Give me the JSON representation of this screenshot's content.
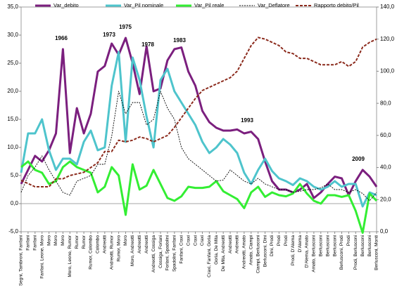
{
  "chart_data": {
    "type": "line",
    "categories": [
      "Segni, Tambroni, Fanfani",
      "Fanfani",
      "Fanfani",
      "Fanfani, Leone, Moro",
      "Moro",
      "Moro",
      "Moro",
      "Moro, Leone, Rumor",
      "Rumor",
      "Rumor",
      "Rumor, Colombo",
      "Colombo",
      "Andreotti",
      "Andreotti, Rumor",
      "Rumor, Moro",
      "Moro",
      "Moro, Andreotti",
      "Andreotti",
      "Andreotti",
      "Andreotti, Cossiga",
      "Cossiga, Forlani",
      "Forlani, Spadolini",
      "Spadolini, Fanfani",
      "Fanfani, Craxi",
      "Craxi",
      "Craxi",
      "Craxi",
      "Craxi, Fanfani, Goria",
      "Goria, De Mita",
      "De Mita, Andreotti",
      "Andreotti",
      "Andreotti",
      "Andreotti, Amato",
      "Amato, Ciampi",
      "Ciampi, Berlusconi",
      "Berlusconi, Dini",
      "Dini, Prodi",
      "Prodi",
      "Prodi",
      "Prodi, D'Alema",
      "D'Alema",
      "D'Alema, Amato",
      "Amato, Berlusconi",
      "Berlusconi",
      "Berlusconi",
      "Berlusconi",
      "Berlusconi, Prodi",
      "Prodi",
      "Prodi, Berlusconi",
      "Berlusconi",
      "Berlusconi",
      "Berlusconi, Monti"
    ],
    "series": [
      {
        "name": "Var_debito",
        "color": "#7b1f7e",
        "style": "solid",
        "values": [
          3.5,
          6,
          8.5,
          7.5,
          9.5,
          12.5,
          27.5,
          9,
          17,
          12.5,
          16,
          23.5,
          24.5,
          28.5,
          26.5,
          29.5,
          25,
          19.5,
          28,
          20,
          20.5,
          25.5,
          27.5,
          27.8,
          23.5,
          21,
          16.5,
          14.5,
          13.5,
          13,
          13,
          13.2,
          12.5,
          12.8,
          11.5,
          7.5,
          4,
          2.5,
          2.5,
          2,
          2.5,
          3.5,
          1,
          2,
          3.5,
          4.8,
          4.5,
          1.5,
          4,
          6,
          4.8,
          3
        ]
      },
      {
        "name": "Var_Pil nominale",
        "color": "#4ec4cc",
        "style": "solid",
        "values": [
          5.5,
          12.5,
          12.5,
          15,
          9.5,
          6,
          8,
          8,
          7,
          11,
          13,
          9.5,
          10,
          21,
          27,
          11,
          26,
          22,
          15.5,
          10,
          22,
          24,
          20,
          18,
          16,
          14,
          11,
          9,
          10,
          11.5,
          10.5,
          9,
          5.5,
          3.5,
          6,
          8,
          5.8,
          4.5,
          4,
          3.3,
          4.5,
          4,
          3,
          2.5,
          3,
          4,
          3,
          3.5,
          3.5,
          -0.5,
          2,
          1.5
        ]
      },
      {
        "name": "Var_Pil reale",
        "color": "#33ee33",
        "style": "solid",
        "values": [
          6.5,
          7.5,
          6,
          5.5,
          3.5,
          4,
          6.5,
          7.5,
          6.5,
          6,
          5.5,
          2,
          3,
          6.5,
          5,
          -2,
          7,
          2.5,
          3.2,
          6,
          3.5,
          1,
          0.5,
          1.3,
          3,
          2.8,
          2.8,
          3,
          4,
          2.2,
          1.5,
          0.8,
          -0.8,
          2,
          3,
          1.2,
          2,
          1.5,
          1.3,
          1.8,
          3.5,
          1.8,
          0.5,
          0,
          1.5,
          1.5,
          1.2,
          1.5,
          -1.3,
          -5.2,
          1.8,
          0.5
        ]
      },
      {
        "name": "Var_Deflatore",
        "color": "#000000",
        "style": "dashed",
        "values": [
          2,
          5,
          6.5,
          8.5,
          6,
          4,
          2,
          1.5,
          4,
          4.5,
          5,
          7,
          7,
          12,
          20,
          16,
          18,
          18,
          14,
          15,
          20,
          17,
          15,
          10,
          8,
          7,
          6,
          5,
          4,
          4.2,
          6,
          5,
          4,
          3.5,
          4.5,
          3.5,
          3,
          2.5,
          2.5,
          2,
          2.2,
          2.5,
          2.5,
          2.8,
          3.5,
          2.5,
          2.5,
          2,
          2.5,
          1.8,
          0.5,
          2
        ]
      },
      {
        "name": "Rapporto debito/Pil",
        "color": "#8b2a1c",
        "style": "dashed",
        "axis": "y2",
        "values": [
          32,
          30,
          28,
          28,
          28,
          33,
          33,
          35,
          36,
          37,
          40,
          43,
          50,
          50,
          57,
          56,
          57,
          59,
          58,
          56,
          58,
          60,
          65,
          71,
          77,
          83,
          88,
          90,
          92,
          94,
          96,
          100,
          108,
          116,
          121,
          120,
          118,
          116,
          112,
          111,
          108,
          108,
          106,
          104,
          104,
          104,
          106,
          103,
          106,
          115,
          118,
          120
        ]
      }
    ],
    "annotations": [
      "1966",
      "1973",
      "1975",
      "1978",
      "1983",
      "1993",
      "2009"
    ],
    "ylim": [
      -5,
      35
    ],
    "yticks": [
      {
        "value": -5,
        "label": "-5,0"
      },
      {
        "value": 0,
        "label": "0,0"
      },
      {
        "value": 5,
        "label": "5,0"
      },
      {
        "value": 10,
        "label": "10,0"
      },
      {
        "value": 15,
        "label": "15,0"
      },
      {
        "value": 20,
        "label": "20,0"
      },
      {
        "value": 25,
        "label": "25,0"
      },
      {
        "value": 30,
        "label": "30,0"
      },
      {
        "value": 35,
        "label": "35,0"
      }
    ],
    "y2lim": [
      0,
      140
    ],
    "y2ticks": [
      {
        "value": 0,
        "label": "0,0"
      },
      {
        "value": 20,
        "label": "20,0"
      },
      {
        "value": 40,
        "label": "40,0"
      },
      {
        "value": 60,
        "label": "60,0"
      },
      {
        "value": 80,
        "label": "80,0"
      },
      {
        "value": 100,
        "label": "100,0"
      },
      {
        "value": 120,
        "label": "120,0"
      },
      {
        "value": 140,
        "label": "140,0"
      }
    ]
  }
}
